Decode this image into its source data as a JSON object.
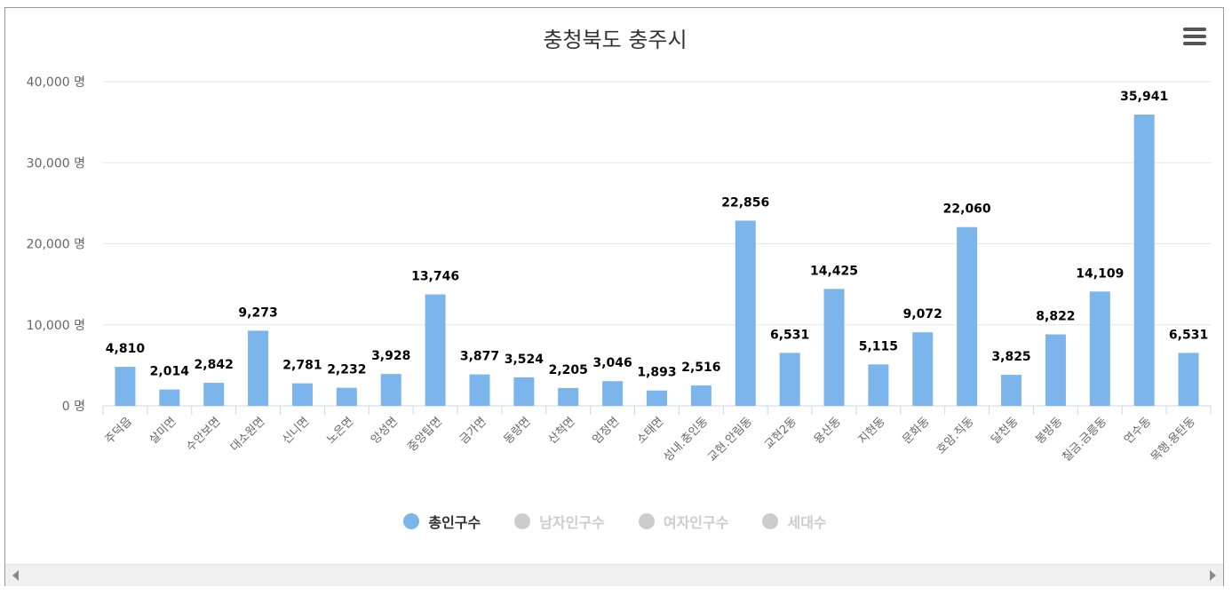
{
  "chart_data": {
    "type": "bar",
    "title": "충청북도 충주시",
    "categories": [
      "주덕읍",
      "살미면",
      "수안보면",
      "대소원면",
      "신니면",
      "노은면",
      "앙성면",
      "중앙탑면",
      "금가면",
      "동량면",
      "산척면",
      "엄정면",
      "소태면",
      "성내.충인동",
      "교현.안림동",
      "교현2동",
      "용산동",
      "지현동",
      "문화동",
      "호암.직동",
      "달천동",
      "봉방동",
      "칠금.금릉동",
      "연수동",
      "목행.용탄동"
    ],
    "series": [
      {
        "name": "총인구수",
        "values": [
          4810,
          2014,
          2842,
          9273,
          2781,
          2232,
          3928,
          13746,
          3877,
          3524,
          2205,
          3046,
          1893,
          2516,
          22856,
          6531,
          14425,
          5115,
          9072,
          22060,
          3825,
          8822,
          14109,
          35941,
          6531
        ]
      }
    ],
    "data_labels": [
      "4,810",
      "2,014",
      "2,842",
      "9,273",
      "2,781",
      "2,232",
      "3,928",
      "13,746",
      "3,877",
      "3,524",
      "2,205",
      "3,046",
      "1,893",
      "2,516",
      "22,856",
      "6,531",
      "14,425",
      "5,115",
      "9,072",
      "22,060",
      "3,825",
      "8,822",
      "14,109",
      "35,941",
      "6,531"
    ],
    "y_ticks": [
      0,
      10000,
      20000,
      30000,
      40000
    ],
    "y_tick_labels": [
      "0 명",
      "10,000 명",
      "20,000 명",
      "30,000 명",
      "40,000 명"
    ],
    "ylim": [
      0,
      40000
    ],
    "grid": true,
    "legend_position": "bottom"
  },
  "legend": [
    {
      "label": "총인구수",
      "color": "#7cb5ec",
      "active": true
    },
    {
      "label": "남자인구수",
      "color": "#cccccc",
      "active": false
    },
    {
      "label": "여자인구수",
      "color": "#cccccc",
      "active": false
    },
    {
      "label": "세대수",
      "color": "#cccccc",
      "active": false
    }
  ],
  "colors": {
    "bar": "#7cb5ec",
    "grid": "#e6e6e6",
    "axis": "#ccd6eb",
    "label": "#666666",
    "data_label": "#000000"
  },
  "icons": {
    "menu": "hamburger-icon",
    "scroll_left": "arrow-left-icon",
    "scroll_right": "arrow-right-icon"
  }
}
